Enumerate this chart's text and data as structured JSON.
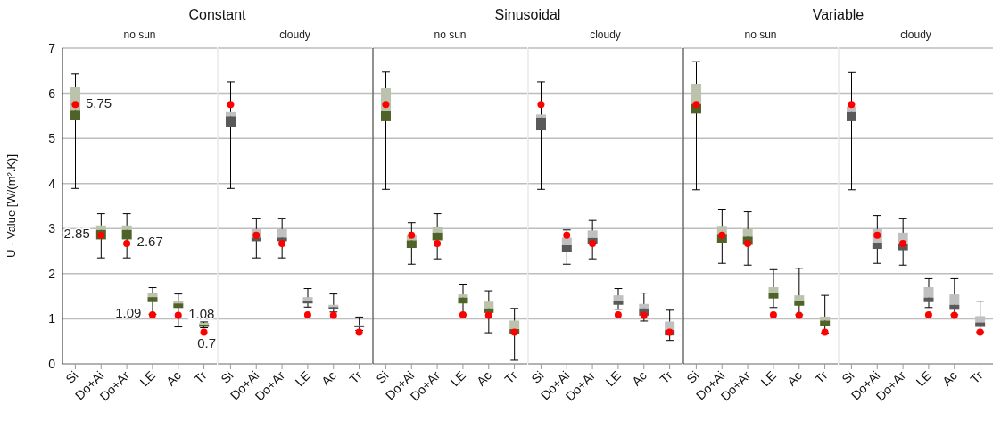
{
  "chart_data": [
    {
      "type": "box",
      "title": "Constant",
      "subtitle": "no sun",
      "ylabel": "U - Value [W/(m².K)]",
      "categories": [
        "Si",
        "Do+Ai",
        "Do+Ar",
        "LE",
        "Ac",
        "Tr"
      ],
      "ylim": [
        0,
        7
      ],
      "yticks": [
        0,
        1,
        2,
        3,
        4,
        5,
        6,
        7
      ],
      "grid": "y",
      "marker": "circle",
      "series": [
        {
          "color": "#4f6228",
          "boxes": [
            {
              "low": 3.89,
              "q1": 5.41,
              "median": 5.63,
              "q3": 6.15,
              "high": 6.43
            },
            {
              "low": 2.35,
              "q1": 2.76,
              "median": 2.97,
              "q3": 3.07,
              "high": 3.33
            },
            {
              "low": 2.35,
              "q1": 2.76,
              "median": 2.97,
              "q3": 3.07,
              "high": 3.33
            },
            {
              "low": 1.1,
              "q1": 1.37,
              "median": 1.48,
              "q3": 1.57,
              "high": 1.69
            },
            {
              "low": 0.82,
              "q1": 1.24,
              "median": 1.34,
              "q3": 1.4,
              "high": 1.55
            },
            {
              "low": 0.8,
              "q1": 0.82,
              "median": 0.87,
              "q3": 0.91,
              "high": 0.93
            }
          ]
        },
        {
          "type": "scatter",
          "color": "#ff0000",
          "values": [
            5.75,
            2.85,
            2.67,
            1.09,
            1.08,
            0.7
          ],
          "value_labels": [
            "5.75",
            "2.85",
            "2.67",
            "1.09",
            "1.08",
            "0.7"
          ]
        }
      ]
    },
    {
      "type": "box",
      "subtitle": "cloudy",
      "categories": [
        "Si",
        "Do+Ai",
        "Do+Ar",
        "LE",
        "Ac",
        "Tr"
      ],
      "ylim": [
        0,
        7
      ],
      "yticks": [
        0,
        1,
        2,
        3,
        4,
        5,
        6,
        7
      ],
      "tick_labels": "x",
      "grid": "y",
      "marker": "circle",
      "series": [
        {
          "color": "#595959",
          "boxes": [
            {
              "low": 3.89,
              "q1": 5.26,
              "median": 5.49,
              "q3": 5.58,
              "high": 6.25
            },
            {
              "low": 2.35,
              "q1": 2.72,
              "median": 2.8,
              "q3": 2.99,
              "high": 3.23
            },
            {
              "low": 2.35,
              "q1": 2.72,
              "median": 2.8,
              "q3": 2.99,
              "high": 3.23
            },
            {
              "low": 1.26,
              "q1": 1.34,
              "median": 1.4,
              "q3": 1.48,
              "high": 1.67
            },
            {
              "low": 1.15,
              "q1": 1.21,
              "median": 1.26,
              "q3": 1.31,
              "high": 1.55
            },
            {
              "low": 0.74,
              "q1": 0.84,
              "median": 0.85,
              "q3": 0.86,
              "high": 1.04
            }
          ]
        },
        {
          "type": "scatter",
          "color": "#ff0000",
          "values": [
            5.75,
            2.85,
            2.67,
            1.09,
            1.08,
            0.7
          ]
        }
      ]
    },
    {
      "type": "box",
      "title": "Sinusoidal",
      "subtitle": "no sun",
      "categories": [
        "Si",
        "Do+Ai",
        "Do+Ar",
        "LE",
        "Ac",
        "Tr"
      ],
      "ylim": [
        0,
        7
      ],
      "yticks": [
        0,
        1,
        2,
        3,
        4,
        5,
        6,
        7
      ],
      "tick_labels": "x",
      "grid": "y",
      "marker": "circle",
      "series": [
        {
          "color": "#4f6228",
          "boxes": [
            {
              "low": 3.87,
              "q1": 5.38,
              "median": 5.6,
              "q3": 6.11,
              "high": 6.47
            },
            {
              "low": 2.21,
              "q1": 2.57,
              "median": 2.74,
              "q3": 2.85,
              "high": 3.13
            },
            {
              "low": 2.33,
              "q1": 2.74,
              "median": 2.91,
              "q3": 3.04,
              "high": 3.33
            },
            {
              "low": 1.09,
              "q1": 1.34,
              "median": 1.47,
              "q3": 1.54,
              "high": 1.77
            },
            {
              "low": 0.69,
              "q1": 1.13,
              "median": 1.23,
              "q3": 1.38,
              "high": 1.62
            },
            {
              "low": 0.08,
              "q1": 0.66,
              "median": 0.77,
              "q3": 0.96,
              "high": 1.23
            }
          ]
        },
        {
          "type": "scatter",
          "color": "#ff0000",
          "values": [
            5.75,
            2.85,
            2.67,
            1.09,
            1.08,
            0.7
          ]
        }
      ]
    },
    {
      "type": "box",
      "subtitle": "cloudy",
      "categories": [
        "Si",
        "Do+Ai",
        "Do+Ar",
        "LE",
        "Ac",
        "Tr"
      ],
      "ylim": [
        0,
        7
      ],
      "yticks": [
        0,
        1,
        2,
        3,
        4,
        5,
        6,
        7
      ],
      "tick_labels": "x",
      "grid": "y",
      "marker": "circle",
      "series": [
        {
          "color": "#595959",
          "boxes": [
            {
              "low": 3.87,
              "q1": 5.18,
              "median": 5.46,
              "q3": 5.53,
              "high": 6.25
            },
            {
              "low": 2.21,
              "q1": 2.48,
              "median": 2.63,
              "q3": 2.8,
              "high": 2.97
            },
            {
              "low": 2.33,
              "q1": 2.65,
              "median": 2.79,
              "q3": 2.96,
              "high": 3.18
            },
            {
              "low": 1.21,
              "q1": 1.31,
              "median": 1.39,
              "q3": 1.52,
              "high": 1.67
            },
            {
              "low": 0.95,
              "q1": 1.07,
              "median": 1.23,
              "q3": 1.33,
              "high": 1.57
            },
            {
              "low": 0.52,
              "q1": 0.63,
              "median": 0.75,
              "q3": 0.94,
              "high": 1.19
            }
          ]
        },
        {
          "type": "scatter",
          "color": "#ff0000",
          "values": [
            5.75,
            2.85,
            2.67,
            1.09,
            1.08,
            0.7
          ]
        }
      ]
    },
    {
      "type": "box",
      "title": "Variable",
      "subtitle": "no sun",
      "categories": [
        "Si",
        "Do+Ai",
        "Do+Ar",
        "LE",
        "Ac",
        "Tr"
      ],
      "ylim": [
        0,
        7
      ],
      "yticks": [
        0,
        1,
        2,
        3,
        4,
        5,
        6,
        7
      ],
      "tick_labels": "x",
      "grid": "y",
      "marker": "circle",
      "series": [
        {
          "color": "#4f6228",
          "boxes": [
            {
              "low": 3.86,
              "q1": 5.55,
              "median": 5.76,
              "q3": 6.21,
              "high": 6.7
            },
            {
              "low": 2.23,
              "q1": 2.67,
              "median": 2.88,
              "q3": 3.06,
              "high": 3.43
            },
            {
              "low": 2.19,
              "q1": 2.64,
              "median": 2.82,
              "q3": 2.99,
              "high": 3.37
            },
            {
              "low": 1.25,
              "q1": 1.45,
              "median": 1.57,
              "q3": 1.7,
              "high": 2.09
            },
            {
              "low": 1.09,
              "q1": 1.29,
              "median": 1.4,
              "q3": 1.52,
              "high": 2.12
            },
            {
              "low": 0.68,
              "q1": 0.85,
              "median": 0.96,
              "q3": 1.05,
              "high": 1.52
            }
          ]
        },
        {
          "type": "scatter",
          "color": "#ff0000",
          "values": [
            5.75,
            2.85,
            2.67,
            1.09,
            1.08,
            0.7
          ]
        }
      ]
    },
    {
      "type": "box",
      "subtitle": "cloudy",
      "categories": [
        "Si",
        "Do+Ai",
        "Do+Ar",
        "LE",
        "Ac",
        "Tr"
      ],
      "ylim": [
        0,
        7
      ],
      "yticks": [
        0,
        1,
        2,
        3,
        4,
        5,
        6,
        7
      ],
      "tick_labels": "x",
      "grid": "y",
      "marker": "circle",
      "series": [
        {
          "color": "#595959",
          "boxes": [
            {
              "low": 3.86,
              "q1": 5.38,
              "median": 5.58,
              "q3": 5.7,
              "high": 6.46
            },
            {
              "low": 2.23,
              "q1": 2.55,
              "median": 2.69,
              "q3": 2.99,
              "high": 3.29
            },
            {
              "low": 2.19,
              "q1": 2.52,
              "median": 2.65,
              "q3": 2.91,
              "high": 3.23
            },
            {
              "low": 1.25,
              "q1": 1.37,
              "median": 1.47,
              "q3": 1.7,
              "high": 1.89
            },
            {
              "low": 1.09,
              "q1": 1.2,
              "median": 1.31,
              "q3": 1.54,
              "high": 1.89
            },
            {
              "low": 0.71,
              "q1": 0.82,
              "median": 0.92,
              "q3": 1.06,
              "high": 1.39
            }
          ]
        },
        {
          "type": "scatter",
          "color": "#ff0000",
          "values": [
            5.75,
            2.85,
            2.67,
            1.09,
            1.08,
            0.7
          ]
        }
      ]
    }
  ]
}
